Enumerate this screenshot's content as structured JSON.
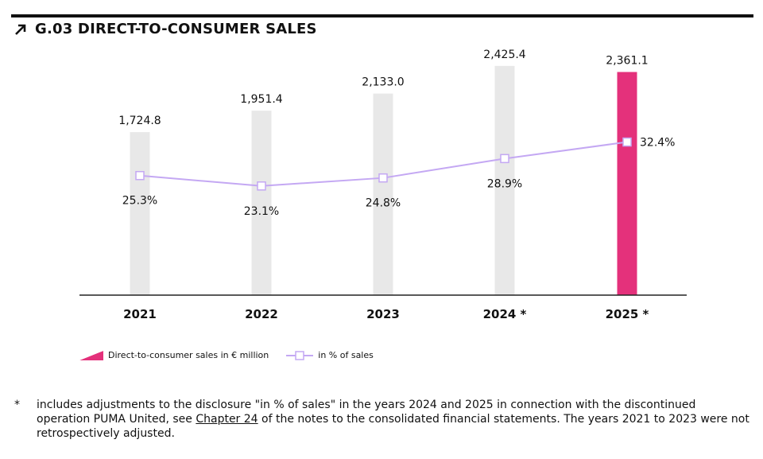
{
  "title": "G.03 DIRECT-TO-CONSUMER SALES",
  "chart_data": {
    "type": "bar",
    "categories": [
      "2021",
      "2022",
      "2023",
      "2024 *",
      "2025 *"
    ],
    "series": [
      {
        "name": "Direct-to-consumer sales in € million",
        "values": [
          1724.8,
          1951.4,
          2133.0,
          2425.4,
          2361.1
        ],
        "labels": [
          "1,724.8",
          "1,951.4",
          "2,133.0",
          "2,425.4",
          "2,361.1"
        ]
      },
      {
        "name": "in % of sales",
        "type": "line",
        "values": [
          25.3,
          23.1,
          24.8,
          28.9,
          32.4
        ],
        "labels": [
          "25.3%",
          "23.1%",
          "24.8%",
          "28.9%",
          "32.4%"
        ]
      }
    ],
    "highlight_index": 4,
    "ylim": [
      0,
      2500
    ],
    "line_ylim": [
      0,
      50
    ]
  },
  "colors": {
    "bar": "#e8e8e8",
    "highlight": "#e4317b",
    "line": "#c4a8f3",
    "axis": "#222222"
  },
  "legend": {
    "bar_label": "Direct-to-consumer sales in € million",
    "line_label": "in % of sales"
  },
  "footnote": {
    "marker": "*",
    "text_before": "includes adjustments to the disclosure \"in % of sales\" in the years 2024 and 2025 in connection with the discontinued operation PUMA United, see ",
    "link": "Chapter 24",
    "text_after": " of the notes to the consolidated financial statements. The years 2021 to 2023 were not retrospectively adjusted."
  }
}
